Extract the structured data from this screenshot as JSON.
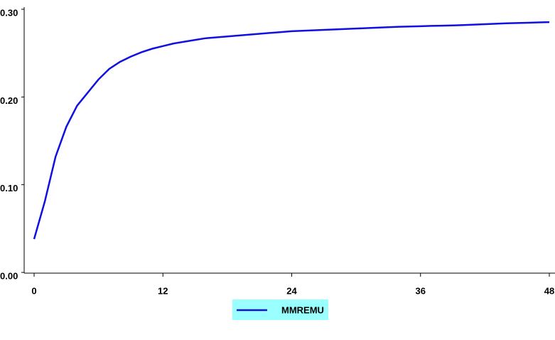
{
  "chart_data": {
    "type": "line",
    "x": [
      0,
      1,
      2,
      3,
      4,
      5,
      6,
      7,
      8,
      9,
      10,
      11,
      12,
      13,
      14,
      15,
      16,
      17,
      18,
      19,
      20,
      21,
      22,
      23,
      24,
      25,
      26,
      27,
      28,
      29,
      30,
      31,
      32,
      33,
      34,
      35,
      36,
      37,
      38,
      39,
      40,
      41,
      42,
      43,
      44,
      45,
      46,
      47,
      48
    ],
    "series": [
      {
        "name": "MMREMU",
        "color": "#1010e0",
        "values": [
          0.038,
          0.081,
          0.132,
          0.166,
          0.19,
          0.205,
          0.22,
          0.232,
          0.24,
          0.246,
          0.251,
          0.255,
          0.258,
          0.261,
          0.263,
          0.265,
          0.267,
          0.268,
          0.269,
          0.27,
          0.271,
          0.272,
          0.273,
          0.274,
          0.275,
          0.2755,
          0.276,
          0.2765,
          0.277,
          0.2775,
          0.278,
          0.2785,
          0.279,
          0.2795,
          0.28,
          0.2803,
          0.2806,
          0.281,
          0.2813,
          0.2816,
          0.282,
          0.2825,
          0.283,
          0.2835,
          0.284,
          0.2843,
          0.2846,
          0.285,
          0.2853
        ]
      }
    ],
    "xlim": [
      0,
      48
    ],
    "xticks": [
      0,
      12,
      24,
      36,
      48
    ],
    "ylim": [
      0,
      0.3
    ],
    "yticks": [
      {
        "value": 0,
        "label": "0.00"
      },
      {
        "value": 0.1,
        "label": "0.10"
      },
      {
        "value": 0.2,
        "label": "0.20"
      },
      {
        "value": 0.3,
        "label": "0.30"
      }
    ],
    "legend_color": "#99ffff"
  }
}
